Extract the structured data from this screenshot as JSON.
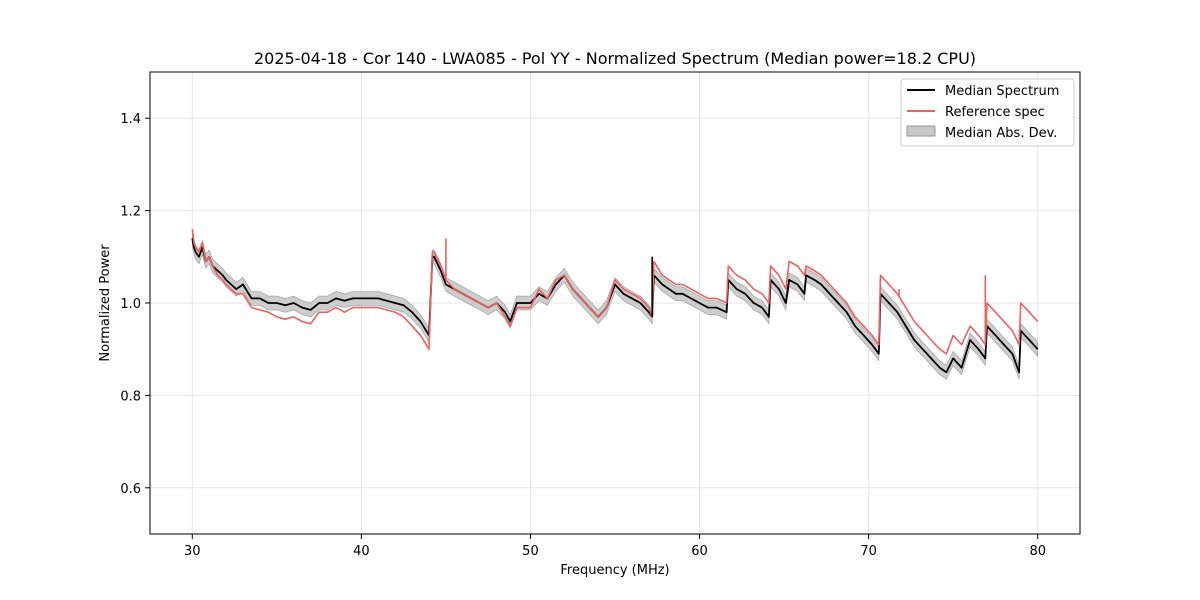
{
  "chart_data": {
    "type": "line",
    "title": "2025-04-18 - Cor 140 - LWA085 - Pol YY - Normalized Spectrum (Median power=18.2 CPU)",
    "xlabel": "Frequency (MHz)",
    "ylabel": "Normalized Power",
    "xlim": [
      27.5,
      82.5
    ],
    "ylim": [
      0.5,
      1.5
    ],
    "xticks": [
      30,
      40,
      50,
      60,
      70,
      80
    ],
    "yticks": [
      0.6,
      0.8,
      1.0,
      1.2,
      1.4
    ],
    "grid": true,
    "legend_position": "top-right",
    "colors": {
      "median": "#000000",
      "reference": "#f06060",
      "mad_fill": "#c8c8c8",
      "mad_edge": "#999999"
    },
    "series": [
      {
        "name": "Median Spectrum",
        "x": [
          30.0,
          30.1,
          30.2,
          30.4,
          30.6,
          30.8,
          31.0,
          31.2,
          31.5,
          31.8,
          32.0,
          32.3,
          32.6,
          33.0,
          33.5,
          34.0,
          34.5,
          35.0,
          35.5,
          36.0,
          36.5,
          37.0,
          37.5,
          38.0,
          38.5,
          39.0,
          39.5,
          40.0,
          40.5,
          41.0,
          41.5,
          42.0,
          42.5,
          43.0,
          43.5,
          44.0,
          44.2,
          44.3,
          44.7,
          45.0,
          45.5,
          46.0,
          46.5,
          47.0,
          47.5,
          48.0,
          48.5,
          48.8,
          49.2,
          49.6,
          50.0,
          50.5,
          51.0,
          51.5,
          52.0,
          52.5,
          53.0,
          53.5,
          54.0,
          54.5,
          55.0,
          55.5,
          56.0,
          56.5,
          57.0,
          57.2,
          57.3,
          57.8,
          58.2,
          58.6,
          59.0,
          59.5,
          60.0,
          60.5,
          61.0,
          61.6,
          61.7,
          62.2,
          62.7,
          63.2,
          63.7,
          64.1,
          64.2,
          64.7,
          65.1,
          65.3,
          65.8,
          66.2,
          66.3,
          66.8,
          67.2,
          67.7,
          68.2,
          68.7,
          69.2,
          69.7,
          70.2,
          70.6,
          70.7,
          71.2,
          71.7,
          72.2,
          72.7,
          73.2,
          73.7,
          74.2,
          74.6,
          75.0,
          75.5,
          76.0,
          76.5,
          76.9,
          77.0,
          77.5,
          78.0,
          78.5,
          78.9,
          79.0,
          79.5,
          80.0
        ],
        "y": [
          1.14,
          1.12,
          1.11,
          1.1,
          1.12,
          1.09,
          1.1,
          1.08,
          1.07,
          1.06,
          1.05,
          1.04,
          1.03,
          1.04,
          1.01,
          1.01,
          1.0,
          1.0,
          0.995,
          1.0,
          0.99,
          0.985,
          1.0,
          1.0,
          1.01,
          1.005,
          1.01,
          1.01,
          1.01,
          1.01,
          1.005,
          1.0,
          0.995,
          0.98,
          0.96,
          0.93,
          1.1,
          1.1,
          1.07,
          1.04,
          1.03,
          1.02,
          1.01,
          1.0,
          0.99,
          1.0,
          0.98,
          0.96,
          1.0,
          1.0,
          1.0,
          1.02,
          1.01,
          1.04,
          1.06,
          1.03,
          1.01,
          0.99,
          0.97,
          0.99,
          1.04,
          1.02,
          1.01,
          1.0,
          0.98,
          0.97,
          1.06,
          1.04,
          1.03,
          1.02,
          1.02,
          1.01,
          1.0,
          0.99,
          0.99,
          0.98,
          1.05,
          1.03,
          1.02,
          1.0,
          0.99,
          0.97,
          1.05,
          1.03,
          1.0,
          1.05,
          1.04,
          1.02,
          1.06,
          1.05,
          1.04,
          1.02,
          1.0,
          0.98,
          0.95,
          0.93,
          0.91,
          0.89,
          1.02,
          1.0,
          0.98,
          0.95,
          0.92,
          0.9,
          0.88,
          0.86,
          0.85,
          0.88,
          0.86,
          0.92,
          0.9,
          0.88,
          0.95,
          0.93,
          0.91,
          0.89,
          0.85,
          0.94,
          0.92,
          0.9
        ]
      },
      {
        "name": "Reference spec",
        "x": [
          30.0,
          30.1,
          30.2,
          30.4,
          30.6,
          30.8,
          31.0,
          31.2,
          31.5,
          31.8,
          32.0,
          32.3,
          32.6,
          33.0,
          33.5,
          34.0,
          34.5,
          35.0,
          35.5,
          36.0,
          36.5,
          37.0,
          37.5,
          38.0,
          38.5,
          39.0,
          39.5,
          40.0,
          40.5,
          41.0,
          41.5,
          42.0,
          42.5,
          43.0,
          43.5,
          44.0,
          44.2,
          44.3,
          44.7,
          45.0,
          45.5,
          46.0,
          46.5,
          47.0,
          47.5,
          48.0,
          48.5,
          48.8,
          49.2,
          49.6,
          50.0,
          50.5,
          51.0,
          51.5,
          52.0,
          52.5,
          53.0,
          53.5,
          54.0,
          54.5,
          55.0,
          55.5,
          56.0,
          56.5,
          57.0,
          57.2,
          57.3,
          57.8,
          58.2,
          58.6,
          59.0,
          59.5,
          60.0,
          60.5,
          61.0,
          61.6,
          61.7,
          62.2,
          62.7,
          63.2,
          63.7,
          64.1,
          64.2,
          64.7,
          65.1,
          65.3,
          65.8,
          66.2,
          66.3,
          66.8,
          67.2,
          67.7,
          68.2,
          68.7,
          69.2,
          69.7,
          70.2,
          70.6,
          70.7,
          71.2,
          71.7,
          72.2,
          72.7,
          73.2,
          73.7,
          74.2,
          74.6,
          75.0,
          75.5,
          76.0,
          76.5,
          76.9,
          77.0,
          77.5,
          78.0,
          78.5,
          78.9,
          79.0,
          79.5,
          80.0
        ],
        "y": [
          1.16,
          1.13,
          1.12,
          1.11,
          1.13,
          1.09,
          1.1,
          1.08,
          1.06,
          1.05,
          1.04,
          1.03,
          1.02,
          1.02,
          0.99,
          0.985,
          0.98,
          0.97,
          0.965,
          0.97,
          0.96,
          0.955,
          0.98,
          0.98,
          0.99,
          0.98,
          0.99,
          0.99,
          0.99,
          0.99,
          0.985,
          0.98,
          0.97,
          0.95,
          0.93,
          0.9,
          1.11,
          1.11,
          1.08,
          1.05,
          1.03,
          1.02,
          1.01,
          1.0,
          0.99,
          1.0,
          0.97,
          0.95,
          0.99,
          0.99,
          0.99,
          1.03,
          1.01,
          1.05,
          1.06,
          1.03,
          1.01,
          0.99,
          0.97,
          0.99,
          1.05,
          1.03,
          1.02,
          1.01,
          0.99,
          0.97,
          1.09,
          1.06,
          1.05,
          1.04,
          1.04,
          1.03,
          1.02,
          1.01,
          1.01,
          1.0,
          1.08,
          1.06,
          1.05,
          1.03,
          1.02,
          1.0,
          1.08,
          1.06,
          1.03,
          1.09,
          1.08,
          1.06,
          1.08,
          1.07,
          1.06,
          1.04,
          1.02,
          1.0,
          0.97,
          0.95,
          0.93,
          0.91,
          1.06,
          1.04,
          1.02,
          0.99,
          0.96,
          0.94,
          0.92,
          0.9,
          0.89,
          0.93,
          0.91,
          0.95,
          0.93,
          0.91,
          1.0,
          0.98,
          0.96,
          0.94,
          0.91,
          1.0,
          0.98,
          0.96
        ]
      }
    ],
    "mad_band": {
      "name": "Median Abs. Dev.",
      "half_width": 0.015
    },
    "spikes": [
      {
        "series": "Reference spec",
        "x": 45.0,
        "y": 1.14
      },
      {
        "series": "Reference spec",
        "x": 57.2,
        "y": 1.1
      },
      {
        "series": "Median Spectrum",
        "x": 57.2,
        "y": 1.1
      },
      {
        "series": "Reference spec",
        "x": 76.9,
        "y": 1.06
      },
      {
        "series": "Reference spec",
        "x": 71.8,
        "y": 1.03
      }
    ]
  }
}
